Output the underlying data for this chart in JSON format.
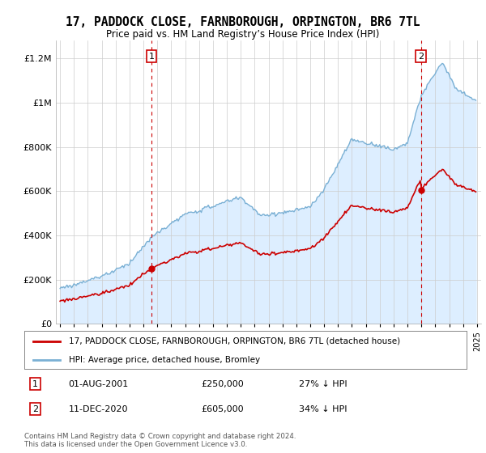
{
  "title": "17, PADDOCK CLOSE, FARNBOROUGH, ORPINGTON, BR6 7TL",
  "subtitle": "Price paid vs. HM Land Registry’s House Price Index (HPI)",
  "legend_line1": "17, PADDOCK CLOSE, FARNBOROUGH, ORPINGTON, BR6 7TL (detached house)",
  "legend_line2": "HPI: Average price, detached house, Bromley",
  "footnote": "Contains HM Land Registry data © Crown copyright and database right 2024.\nThis data is licensed under the Open Government Licence v3.0.",
  "transaction1_date": "01-AUG-2001",
  "transaction1_price": "£250,000",
  "transaction1_hpi": "27% ↓ HPI",
  "transaction2_date": "11-DEC-2020",
  "transaction2_price": "£605,000",
  "transaction2_hpi": "34% ↓ HPI",
  "property_color": "#cc0000",
  "hpi_color": "#7ab0d4",
  "fill_color": "#ddeeff",
  "grid_color": "#cccccc",
  "background_color": "#ffffff"
}
